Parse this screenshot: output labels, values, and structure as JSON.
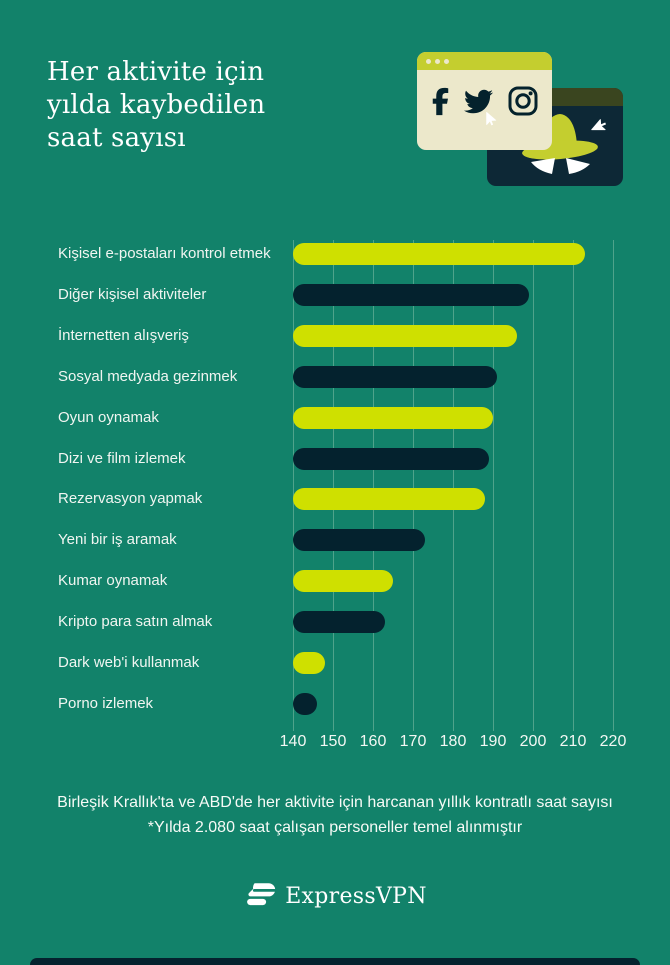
{
  "palette": {
    "background": "#12826A",
    "bar_lime": "#cfe000",
    "bar_navy": "#04222e",
    "gridline": "#4fa38b",
    "text": "#ffffff",
    "window_cream": "#ece8cb",
    "window_titlebar_lime": "#c4ce2f",
    "window_navy": "#0d2836",
    "window_titlebar_olive": "#3a451f",
    "icon_dark": "#04222c"
  },
  "header": {
    "title_lines": [
      "Her aktivite için",
      "yılda kaybedilen",
      "saat sayısı"
    ]
  },
  "chart_data": {
    "type": "bar",
    "orientation": "horizontal",
    "title": "Her aktivite için yılda kaybedilen saat sayısı",
    "categories": [
      "Kişisel e-postaları kontrol etmek",
      "Diğer kişisel aktiviteler",
      "İnternetten alışveriş",
      "Sosyal medyada gezinmek",
      "Oyun oynamak",
      "Dizi ve film izlemek",
      "Rezervasyon yapmak",
      "Yeni bir iş aramak",
      "Kumar oynamak",
      "Kripto para satın almak",
      "Dark web'i kullanmak",
      "Porno izlemek"
    ],
    "values": [
      213,
      199,
      196,
      191,
      190,
      189,
      188,
      173,
      165,
      163,
      148,
      146
    ],
    "xlabel": "",
    "ylabel": "",
    "xlim": [
      140,
      220
    ],
    "xticks": [
      140,
      150,
      160,
      170,
      180,
      190,
      200,
      210,
      220
    ],
    "grid": true,
    "legend": null,
    "bar_color_pattern": [
      "#cfe000",
      "#04222e"
    ]
  },
  "footnote": {
    "line1": "Birleşik Krallık'ta ve ABD'de her aktivite için harcanan yıllık kontratlı saat sayısı",
    "line2": "*Yılda 2.080 saat çalışan personeller temel alınmıştır"
  },
  "logo": {
    "brand": "ExpressVPN"
  }
}
